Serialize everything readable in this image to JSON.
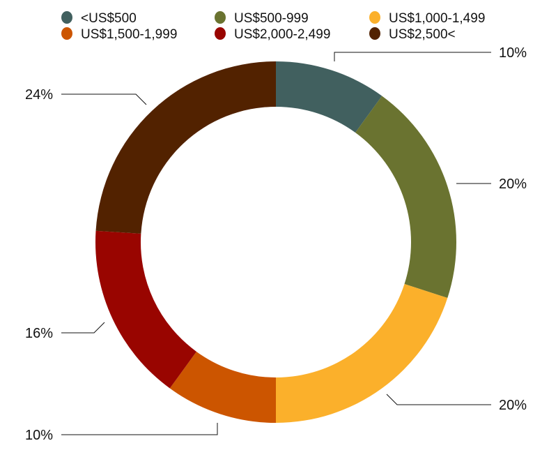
{
  "chart_data": {
    "type": "pie",
    "donut": true,
    "title": "",
    "legend_position": "top",
    "categories": [
      "<US$500",
      "US$500-999",
      "US$1,000-1,499",
      "US$1,500-1,999",
      "US$2,000-2,499",
      "US$2,500<"
    ],
    "values": [
      10,
      20,
      20,
      10,
      16,
      24
    ],
    "labels": [
      "10%",
      "20%",
      "20%",
      "10%",
      "16%",
      "24%"
    ],
    "colors": [
      "#41605F",
      "#6A7330",
      "#FBB02B",
      "#CC5500",
      "#990500",
      "#522200"
    ]
  }
}
